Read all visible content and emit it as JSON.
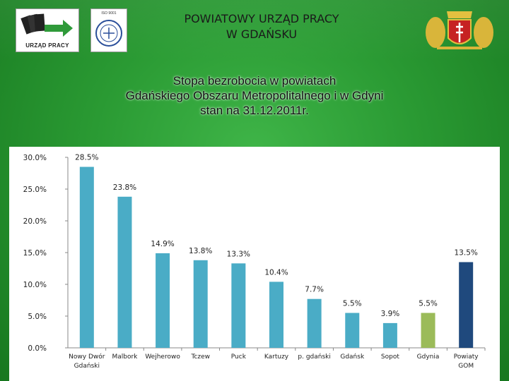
{
  "header": {
    "title_line1": "POWIATOWY URZĄD PRACY",
    "title_line2": "W GDAŃSKU",
    "logo_text": "URZĄD PRACY",
    "iso_text": "ISO 9001"
  },
  "chart_data": {
    "type": "bar",
    "title_lines": [
      "Stopa bezrobocia w powiatach",
      "Gdańskiego Obszaru Metropolitalnego i w Gdyni",
      "stan na 31.12.2011r."
    ],
    "categories": [
      [
        "Nowy Dwór",
        "Gdański"
      ],
      [
        "Malbork"
      ],
      [
        "Wejherowo"
      ],
      [
        "Tczew"
      ],
      [
        "Puck"
      ],
      [
        "Kartuzy"
      ],
      [
        "p. gdański"
      ],
      [
        "Gdańsk"
      ],
      [
        "Sopot"
      ],
      [
        "Gdynia"
      ],
      [
        "Powiaty",
        "GOM"
      ]
    ],
    "values": [
      28.5,
      23.8,
      14.9,
      13.8,
      13.3,
      10.4,
      7.7,
      5.5,
      3.9,
      5.5,
      13.5
    ],
    "value_labels": [
      "28.5%",
      "23.8%",
      "14.9%",
      "13.8%",
      "13.3%",
      "10.4%",
      "7.7%",
      "5.5%",
      "3.9%",
      "5.5%",
      "13.5%"
    ],
    "bar_colors": [
      "#4aacc6",
      "#4aacc6",
      "#4aacc6",
      "#4aacc6",
      "#4aacc6",
      "#4aacc6",
      "#4aacc6",
      "#4aacc6",
      "#4aacc6",
      "#9bbb59",
      "#1f497d"
    ],
    "yticks": [
      "0.0%",
      "5.0%",
      "10.0%",
      "15.0%",
      "20.0%",
      "25.0%",
      "30.0%"
    ],
    "ylim": [
      0,
      30
    ],
    "grid": false
  }
}
